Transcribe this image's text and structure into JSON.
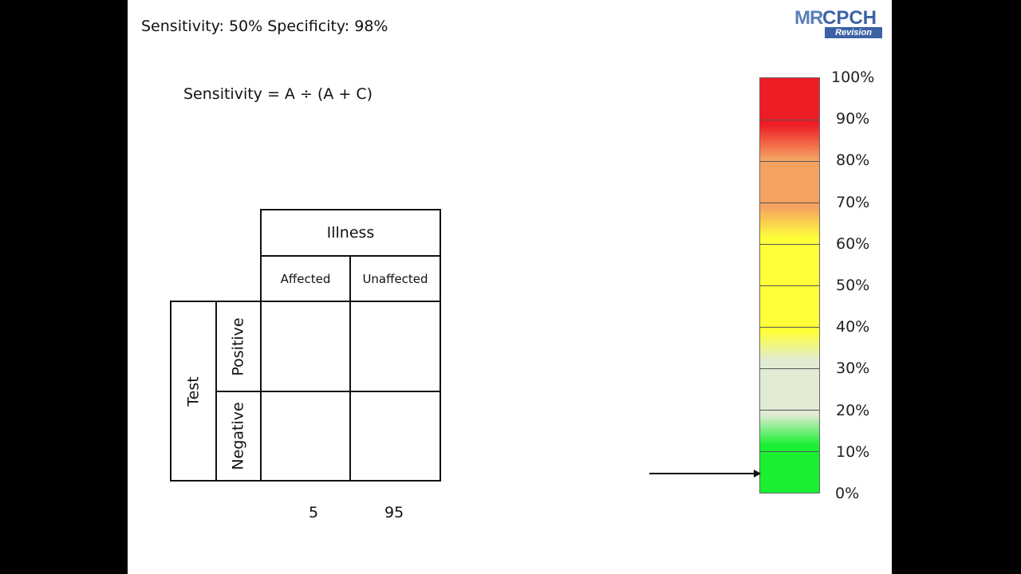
{
  "header": {
    "text": "Sensitivity: 50%  Specificity: 98%"
  },
  "formula": "Sensitivity = A ÷ (A + C)",
  "logo": {
    "part1": "MR",
    "part2": "CPCH",
    "part3": "Revision"
  },
  "table": {
    "illness_label": "Illness",
    "col_affected": "Affected",
    "col_unaffected": "Unaffected",
    "test_label": "Test",
    "row_positive": "Positive",
    "row_negative": "Negative",
    "total_affected": "5",
    "total_unaffected": "95"
  },
  "scale": {
    "labels": [
      "100%",
      "90%",
      "80%",
      "70%",
      "60%",
      "50%",
      "40%",
      "30%",
      "20%",
      "10%",
      "0%"
    ],
    "indicator_value": 0.05,
    "colors": {
      "red": "#ee1c25",
      "orange": "#f5a261",
      "yellow": "#ffff3a",
      "grey": "#e1ebd3",
      "green": "#19f032"
    }
  }
}
